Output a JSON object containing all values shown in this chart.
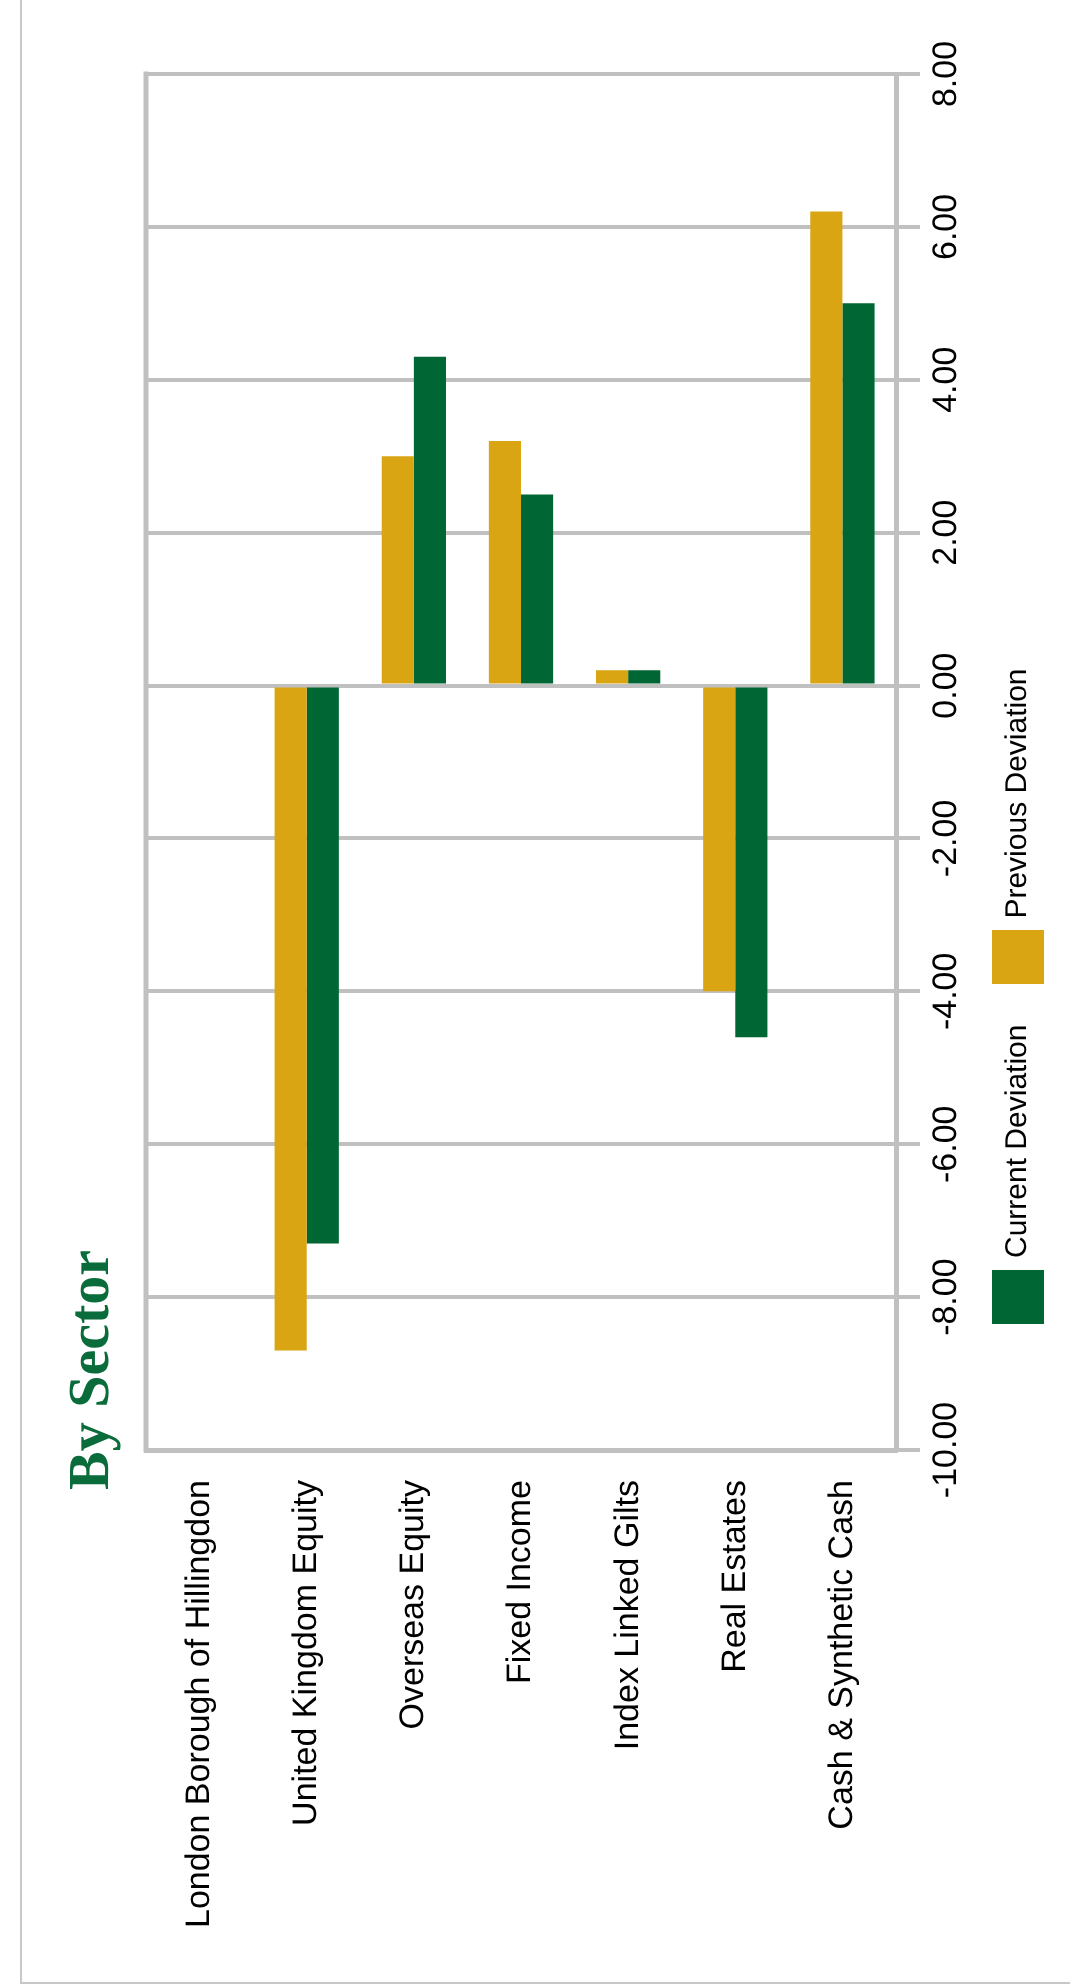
{
  "chart_data": {
    "type": "bar",
    "title": "By Sector",
    "categories": [
      "London Borough of Hillingdon",
      "United Kingdom Equity",
      "Overseas Equity",
      "Fixed Income",
      "Index Linked Gilts",
      "Real Estates",
      "Cash & Synthetic Cash"
    ],
    "series": [
      {
        "name": "Previous Deviation",
        "color": "#d9a513",
        "values": [
          null,
          -8.7,
          3.0,
          3.2,
          0.2,
          -4.0,
          6.2
        ]
      },
      {
        "name": "Current Deviation",
        "color": "#006633",
        "values": [
          null,
          -7.3,
          4.3,
          2.5,
          0.2,
          -4.6,
          5.0
        ]
      }
    ],
    "ylim": [
      -10,
      8
    ],
    "yticks": [
      {
        "value": -10,
        "label": "-10.00"
      },
      {
        "value": -8,
        "label": "-8.00"
      },
      {
        "value": -6,
        "label": "-6.00"
      },
      {
        "value": -4,
        "label": "-4.00"
      },
      {
        "value": -2,
        "label": "-2.00"
      },
      {
        "value": 0,
        "label": "0.00"
      },
      {
        "value": 2,
        "label": "2.00"
      },
      {
        "value": 4,
        "label": "4.00"
      },
      {
        "value": 6,
        "label": "6.00"
      },
      {
        "value": 8,
        "label": "8.00"
      }
    ],
    "grid": "y",
    "legend": "right"
  }
}
